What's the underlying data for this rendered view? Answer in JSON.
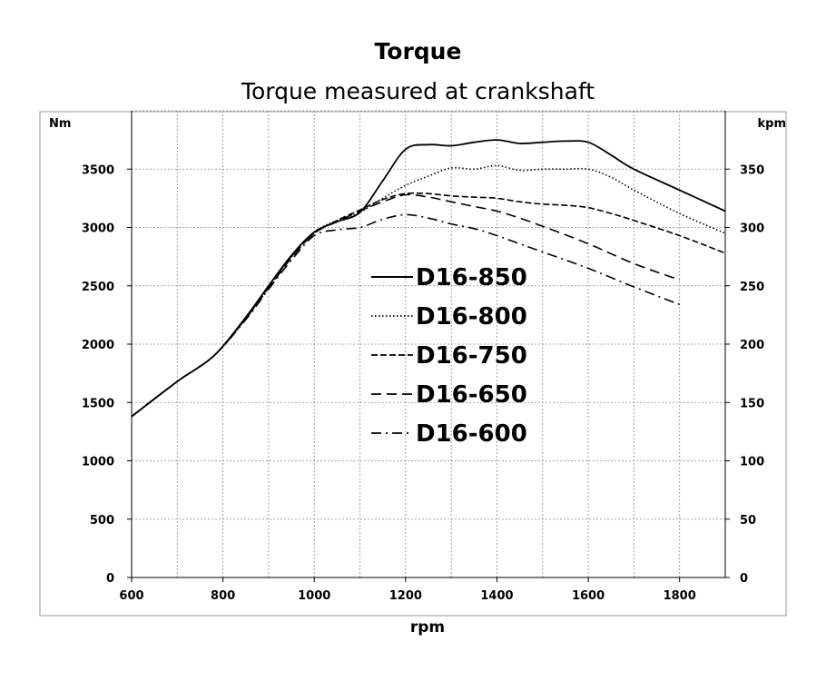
{
  "chart_data": {
    "type": "line",
    "title": "Torque",
    "subtitle": "Torque measured at crankshaft",
    "xlabel": "rpm",
    "ylabel": "Nm",
    "y2label": "kpm",
    "xlim": [
      600,
      1900
    ],
    "ylim": [
      0,
      4000
    ],
    "y2lim": [
      0,
      400
    ],
    "x_ticks": [
      600,
      800,
      1000,
      1200,
      1400,
      1600,
      1800
    ],
    "y_ticks": [
      0,
      500,
      1000,
      1500,
      2000,
      2500,
      3000,
      3500
    ],
    "y2_ticks": [
      0,
      50,
      100,
      150,
      200,
      250,
      300,
      350
    ],
    "grid": true,
    "legend_position": "center",
    "series": [
      {
        "name": "D16-850",
        "dash": "solid",
        "x": [
          600,
          700,
          780,
          850,
          900,
          950,
          1000,
          1050,
          1100,
          1150,
          1200,
          1250,
          1300,
          1350,
          1400,
          1450,
          1500,
          1550,
          1600,
          1650,
          1700,
          1800,
          1900
        ],
        "y": [
          1380,
          1680,
          1900,
          2230,
          2500,
          2760,
          2960,
          3050,
          3130,
          3400,
          3670,
          3710,
          3700,
          3730,
          3750,
          3720,
          3730,
          3740,
          3730,
          3620,
          3500,
          3320,
          3140
        ]
      },
      {
        "name": "D16-800",
        "dash": "dot",
        "x": [
          600,
          700,
          780,
          850,
          900,
          950,
          1000,
          1050,
          1100,
          1150,
          1200,
          1250,
          1300,
          1350,
          1400,
          1450,
          1500,
          1550,
          1600,
          1650,
          1700,
          1800,
          1900
        ],
        "y": [
          1380,
          1680,
          1900,
          2230,
          2500,
          2760,
          2960,
          3060,
          3130,
          3250,
          3360,
          3440,
          3510,
          3500,
          3530,
          3490,
          3500,
          3500,
          3500,
          3430,
          3320,
          3120,
          2950
        ]
      },
      {
        "name": "D16-750",
        "dash": "dash",
        "x": [
          600,
          700,
          780,
          850,
          900,
          950,
          1000,
          1050,
          1100,
          1150,
          1200,
          1250,
          1300,
          1350,
          1400,
          1450,
          1500,
          1550,
          1600,
          1650,
          1700,
          1800,
          1900
        ],
        "y": [
          1380,
          1680,
          1900,
          2220,
          2490,
          2750,
          2950,
          3060,
          3150,
          3240,
          3290,
          3290,
          3270,
          3260,
          3250,
          3220,
          3200,
          3190,
          3170,
          3120,
          3060,
          2930,
          2780
        ]
      },
      {
        "name": "D16-650",
        "dash": "longdash",
        "x": [
          600,
          700,
          780,
          850,
          900,
          950,
          1000,
          1050,
          1100,
          1150,
          1200,
          1250,
          1300,
          1350,
          1400,
          1450,
          1500,
          1600,
          1700,
          1800
        ],
        "y": [
          1380,
          1680,
          1900,
          2220,
          2480,
          2740,
          2950,
          3050,
          3140,
          3220,
          3280,
          3260,
          3220,
          3180,
          3140,
          3080,
          3010,
          2860,
          2690,
          2550
        ]
      },
      {
        "name": "D16-600",
        "dash": "dashdot",
        "x": [
          600,
          700,
          780,
          850,
          900,
          950,
          1000,
          1050,
          1100,
          1150,
          1200,
          1250,
          1300,
          1350,
          1400,
          1450,
          1500,
          1600,
          1700,
          1800
        ],
        "y": [
          1380,
          1680,
          1900,
          2210,
          2470,
          2720,
          2930,
          2980,
          3000,
          3070,
          3110,
          3080,
          3030,
          2990,
          2930,
          2860,
          2790,
          2650,
          2490,
          2340
        ]
      }
    ]
  }
}
